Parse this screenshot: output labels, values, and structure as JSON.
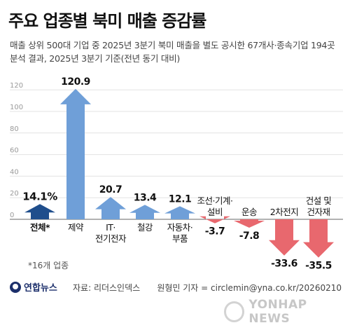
{
  "header": {
    "title": "주요 업종별 북미 매출 증감률",
    "subtitle_line1": "매출 상위 500대 기업 중 2025년 3분기 북미 매출을 별도 공시한 67개사·종속기업 194곳",
    "subtitle_line2": "분석 결과, 2025년 3분기 기준(전년 동기 대비)"
  },
  "chart_data": {
    "type": "bar",
    "categories": [
      "전체*",
      "제약",
      "IT·전기전자",
      "철강",
      "자동차·부품",
      "조선·기계·설비",
      "운송",
      "2차전지",
      "건설 및 건자재"
    ],
    "category_lines": [
      [
        "전체*"
      ],
      [
        "제약"
      ],
      [
        "IT·",
        "전기전자"
      ],
      [
        "철강"
      ],
      [
        "자동차·",
        "부품"
      ],
      [
        "조선·기계·",
        "설비"
      ],
      [
        "운송"
      ],
      [
        "2차전지"
      ],
      [
        "건설 및",
        "건자재"
      ]
    ],
    "values": [
      14.1,
      120.9,
      20.7,
      13.4,
      12.1,
      -3.7,
      -7.8,
      -33.6,
      -35.5
    ],
    "value_labels": [
      "14.1%",
      "120.9",
      "20.7",
      "13.4",
      "12.1",
      "-3.7",
      "-7.8",
      "-33.6",
      "-35.5"
    ],
    "y_ticks": [
      0,
      20,
      40,
      60,
      80,
      100,
      120
    ],
    "ylim": [
      -40,
      125
    ],
    "colors": {
      "total": "#1f4e8c",
      "positive": "#6f9fd8",
      "negative": "#e8686e",
      "grid": "#e3e3e3",
      "tick_text": "#9a9a9a"
    }
  },
  "footer": {
    "footnote": "*16개 업종",
    "logo_text": "연합뉴스",
    "source": "자료: 리더스인덱스",
    "credit": "원형민 기자 = circlemin@yna.co.kr/20260210",
    "watermark": "YONHAP NEWS"
  }
}
